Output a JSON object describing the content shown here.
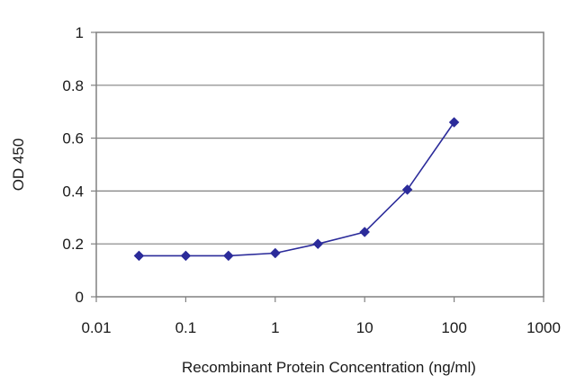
{
  "chart_data": {
    "type": "line",
    "title": "",
    "xlabel": "Recombinant Protein Concentration (ng/ml)",
    "ylabel": "OD 450",
    "xscale": "log",
    "xlim": [
      0.01,
      1000
    ],
    "ylim": [
      0,
      1
    ],
    "xticks": [
      "0.01",
      "0.1",
      "1",
      "10",
      "100",
      "1000"
    ],
    "yticks": [
      "0",
      "0.2",
      "0.4",
      "0.6",
      "0.8",
      "1"
    ],
    "grid": "horizontal",
    "legend": "none",
    "series": [
      {
        "x": [
          0.03,
          0.1,
          0.3,
          1,
          3,
          10,
          30,
          100
        ],
        "y": [
          0.155,
          0.155,
          0.155,
          0.165,
          0.2,
          0.245,
          0.405,
          0.66
        ],
        "color": "#2b2b9a",
        "marker": "diamond"
      }
    ]
  }
}
